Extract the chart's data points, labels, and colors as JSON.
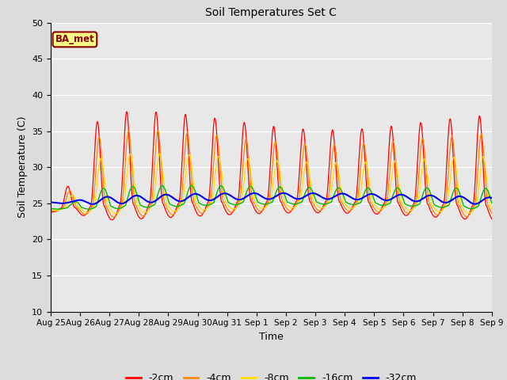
{
  "title": "Soil Temperatures Set C",
  "xlabel": "Time",
  "ylabel": "Soil Temperature (C)",
  "ylim": [
    10,
    50
  ],
  "yticks": [
    10,
    15,
    20,
    25,
    30,
    35,
    40,
    45,
    50
  ],
  "annotation": "BA_met",
  "fig_facecolor": "#dcdcdc",
  "ax_facecolor": "#e8e8e8",
  "series_colors": {
    "-2cm": "#ff0000",
    "-4cm": "#ff8800",
    "-8cm": "#ffdd00",
    "-16cm": "#00bb00",
    "-32cm": "#0000ee"
  },
  "x_tick_labels": [
    "Aug 25",
    "Aug 26",
    "Aug 27",
    "Aug 28",
    "Aug 29",
    "Aug 30",
    "Aug 31",
    "Sep 1",
    "Sep 2",
    "Sep 3",
    "Sep 4",
    "Sep 5",
    "Sep 6",
    "Sep 7",
    "Sep 8",
    "Sep 9"
  ],
  "num_days": 15,
  "points_per_day": 144
}
